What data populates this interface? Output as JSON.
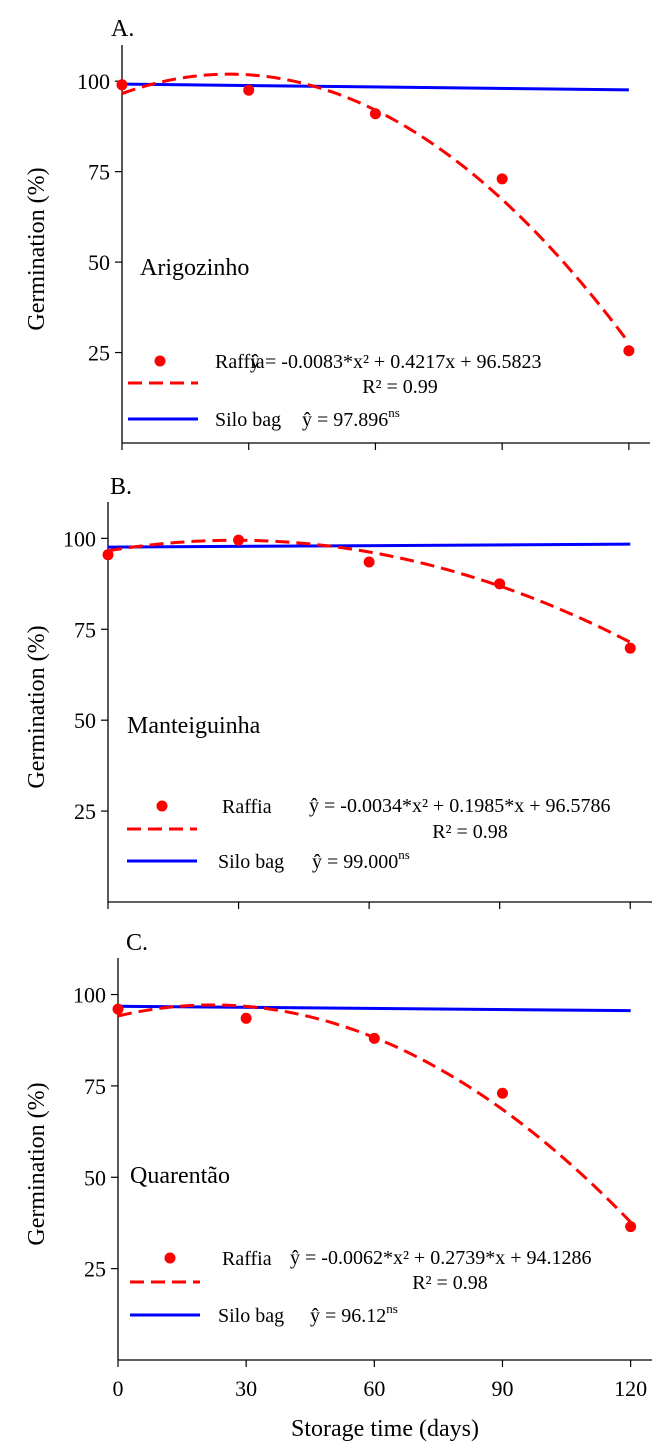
{
  "chart_data": [
    {
      "type": "scatter",
      "panel_label": "A.",
      "cultivar": "Arigozinho",
      "ylabel": "Germination (%)",
      "ylim": [
        0,
        110
      ],
      "yticks": [
        25,
        50,
        75,
        100
      ],
      "xlim": [
        0,
        125
      ],
      "xticks": [
        0,
        30,
        60,
        90,
        120
      ],
      "show_x_tick_labels": false,
      "series": [
        {
          "name": "Raffia",
          "points": [
            [
              0,
              99
            ],
            [
              30,
              97.5
            ],
            [
              60,
              91
            ],
            [
              90,
              73
            ],
            [
              120,
              25.5
            ]
          ],
          "fit": {
            "a": -0.0083,
            "b": 0.4217,
            "c": 96.5823
          },
          "equation": "ŷ = -0.0083*x² + 0.4217x + 96.5823",
          "r2": "R² = 0.99",
          "color": "#ff0000"
        },
        {
          "name": "Silo bag",
          "line": [
            [
              0,
              99.2
            ],
            [
              120,
              97.6
            ]
          ],
          "equation": "ŷ = 97.896",
          "equation_sup": "ns",
          "color": "#0000ff"
        }
      ]
    },
    {
      "type": "scatter",
      "panel_label": "B.",
      "cultivar": "Manteiguinha",
      "ylabel": "Germination (%)",
      "ylim": [
        0,
        110
      ],
      "yticks": [
        25,
        50,
        75,
        100
      ],
      "xlim": [
        0,
        125
      ],
      "xticks": [
        0,
        30,
        60,
        90,
        120
      ],
      "show_x_tick_labels": false,
      "series": [
        {
          "name": "Raffia",
          "points": [
            [
              0,
              95.5
            ],
            [
              30,
              99.5
            ],
            [
              60,
              93.5
            ],
            [
              90,
              87.5
            ],
            [
              120,
              69.8
            ]
          ],
          "fit": {
            "a": -0.0034,
            "b": 0.1985,
            "c": 96.5786
          },
          "equation": "ŷ = -0.0034*x² + 0.1985*x + 96.5786",
          "r2": "R² = 0.98",
          "color": "#ff0000"
        },
        {
          "name": "Silo bag",
          "line": [
            [
              0,
              97.6
            ],
            [
              120,
              98.4
            ]
          ],
          "equation": "ŷ = 99.000",
          "equation_sup": "ns",
          "color": "#0000ff"
        }
      ]
    },
    {
      "type": "scatter",
      "panel_label": "C.",
      "cultivar": "Quarentão",
      "ylabel": "Germination (%)",
      "xlabel": "Storage time (days)",
      "ylim": [
        0,
        110
      ],
      "yticks": [
        25,
        50,
        75,
        100
      ],
      "xlim": [
        0,
        125
      ],
      "xticks": [
        0,
        30,
        60,
        90,
        120
      ],
      "show_x_tick_labels": true,
      "series": [
        {
          "name": "Raffia",
          "points": [
            [
              0,
              96
            ],
            [
              30,
              93.5
            ],
            [
              60,
              88
            ],
            [
              90,
              73
            ],
            [
              120,
              36.5
            ]
          ],
          "fit": {
            "a": -0.0062,
            "b": 0.2739,
            "c": 94.1286
          },
          "equation": "ŷ = -0.0062*x² + 0.2739*x + 94.1286",
          "r2": "R² = 0.98",
          "color": "#ff0000"
        },
        {
          "name": "Silo bag",
          "line": [
            [
              0,
              96.8
            ],
            [
              120,
              95.6
            ]
          ],
          "equation": "ŷ = 96.12",
          "equation_sup": "ns",
          "color": "#0000ff"
        }
      ]
    }
  ]
}
